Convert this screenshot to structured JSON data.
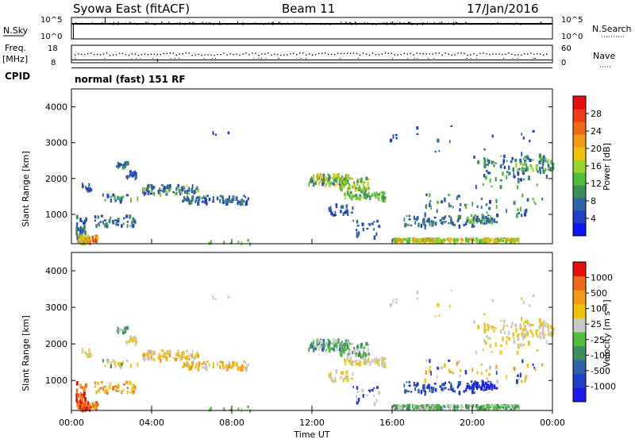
{
  "header": {
    "station": "Syowa East (fitACF)",
    "beam": "Beam 11",
    "date": "17/Jan/2016"
  },
  "top_panels": {
    "nsky_label": "N.Sky",
    "nsky_top_tick": "10^5",
    "nsky_bottom_tick": "10^0",
    "nsearch_label": "N.Search",
    "nsearch_top_tick": "10^5",
    "nsearch_bottom_tick": "10^0",
    "freq_label_1": "Freq.",
    "freq_label_2": "[MHz]",
    "freq_ticks": [
      "18",
      "8"
    ],
    "nave_label": "Nave",
    "nave_ticks": [
      "60",
      "0"
    ],
    "cpid_label": "CPID",
    "cpid_value": "normal (fast) 151 RF"
  },
  "chart_data": [
    {
      "type": "heatmap",
      "name": "power",
      "ylabel": "Slant Range [km]",
      "yticks": [
        "4000",
        "3000",
        "2000",
        "1000"
      ],
      "ylim": [
        180,
        4500
      ],
      "colorbar_label": "Power [dB]",
      "colorbar_ticks": [
        "28",
        "24",
        "20",
        "16",
        "12",
        "8",
        "4"
      ],
      "colors": [
        "#0a14f5",
        "#1e3ec8",
        "#2f62a8",
        "#3b8f5a",
        "#4fbf3a",
        "#9ad42e",
        "#f0c20a",
        "#f39a14",
        "#ef6a18",
        "#ef3a16",
        "#e80e0e"
      ]
    },
    {
      "type": "heatmap",
      "name": "velocity",
      "ylabel": "Slant Range [km]",
      "yticks": [
        "4000",
        "3000",
        "2000",
        "1000"
      ],
      "ylim": [
        180,
        4500
      ],
      "colorbar_label": "Velocity [m s⁻¹]",
      "colorbar_ticks": [
        "1000",
        "500",
        "100",
        "25",
        "-25",
        "-100",
        "-500",
        "-1000"
      ],
      "colors": [
        "#1a1aeb",
        "#1e3ec8",
        "#2f62a8",
        "#3b8f5a",
        "#4fbf3a",
        "#c8c8c8",
        "#f0c20a",
        "#f39a14",
        "#ef6a18",
        "#e80e0e"
      ]
    }
  ],
  "xaxis": {
    "label": "Time UT",
    "ticks": [
      "00:00",
      "04:00",
      "08:00",
      "12:00",
      "16:00",
      "20:00",
      "00:00"
    ]
  }
}
